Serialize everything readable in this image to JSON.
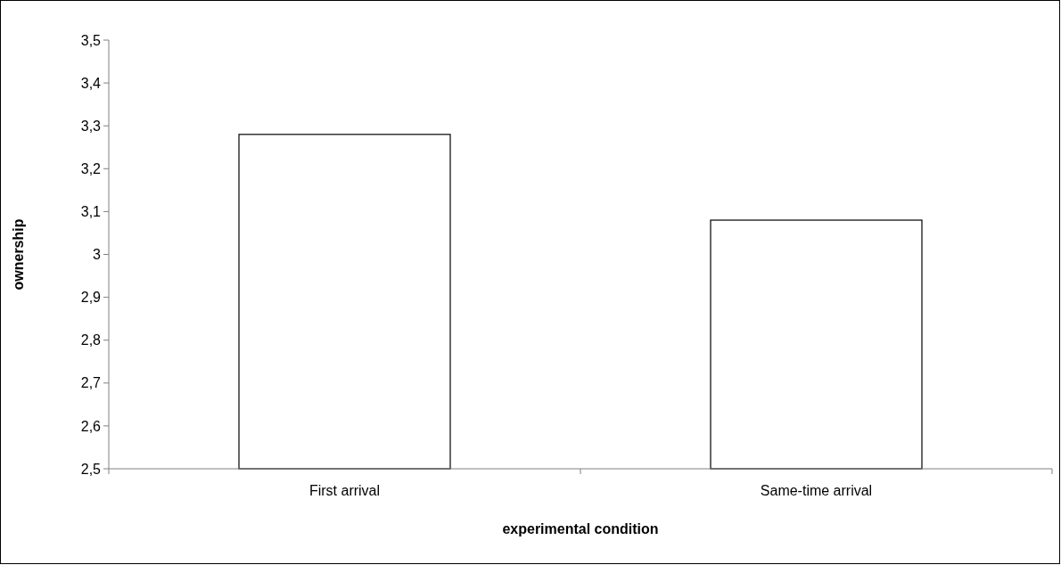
{
  "chart_data": {
    "type": "bar",
    "xlabel": "experimental condition",
    "ylabel": "ownership",
    "categories": [
      "First arrival",
      "Same-time arrival"
    ],
    "values": [
      3.28,
      3.08
    ],
    "color": "#ffffff",
    "ylim": [
      2.5,
      3.5
    ],
    "yticks": [
      {
        "value": 2.5,
        "label": "2,5"
      },
      {
        "value": 2.6,
        "label": "2,6"
      },
      {
        "value": 2.7,
        "label": "2,7"
      },
      {
        "value": 2.8,
        "label": "2,8"
      },
      {
        "value": 2.9,
        "label": "2,9"
      },
      3,
      {
        "value": 3.1,
        "label": "3,1"
      },
      {
        "value": 3.2,
        "label": "3,2"
      },
      {
        "value": 3.3,
        "label": "3,3"
      },
      {
        "value": 3.4,
        "label": "3,4"
      },
      {
        "value": 3.5,
        "label": "3,5"
      }
    ],
    "grid": false
  }
}
